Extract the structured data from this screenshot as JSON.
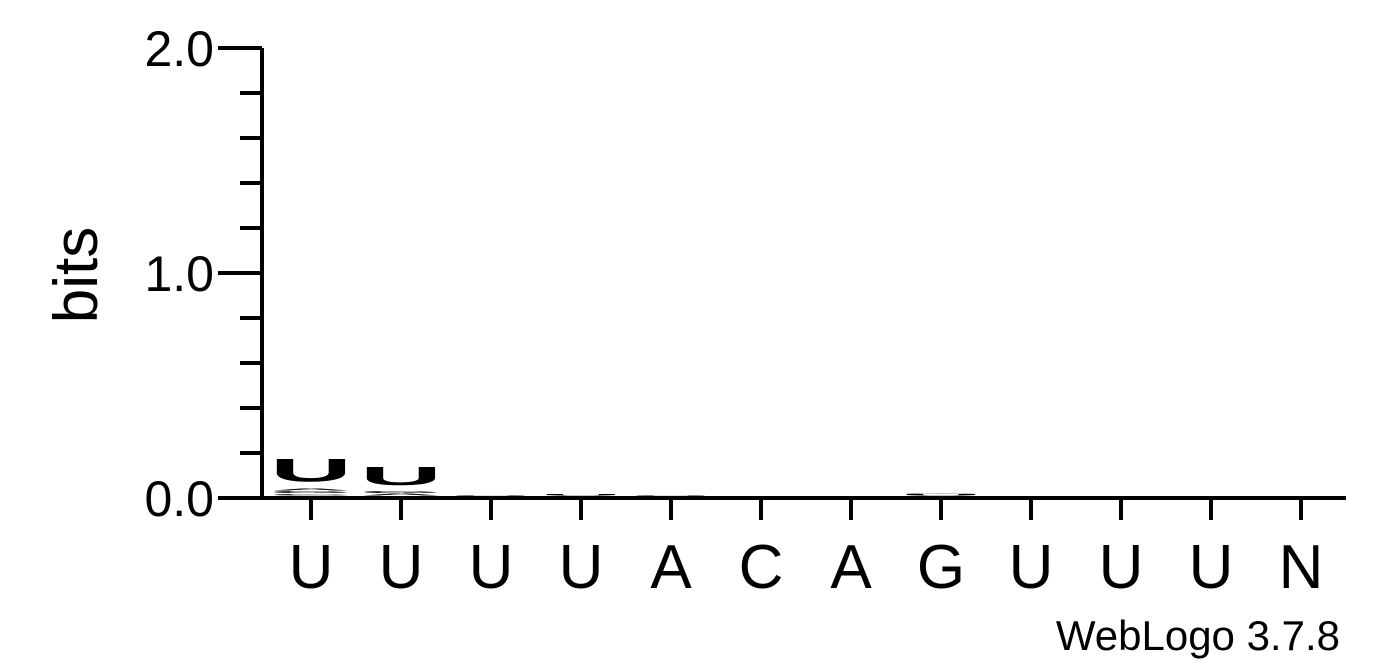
{
  "chart_data": {
    "type": "sequence-logo",
    "ylabel": "bits",
    "ylim": [
      0,
      2.0
    ],
    "y_ticks": [
      "0.0",
      "1.0",
      "2.0"
    ],
    "minor_tick_step": 0.2,
    "positions": [
      "U",
      "U",
      "U",
      "U",
      "A",
      "C",
      "A",
      "G",
      "U",
      "U",
      "U",
      "N"
    ],
    "stacks": [
      [
        {
          "letter": "C",
          "bits": 0.01
        },
        {
          "letter": "G",
          "bits": 0.012
        },
        {
          "letter": "A",
          "bits": 0.012
        },
        {
          "letter": "U",
          "bits": 0.16
        }
      ],
      [
        {
          "letter": "A",
          "bits": 0.012
        },
        {
          "letter": "G",
          "bits": 0.012
        },
        {
          "letter": "U",
          "bits": 0.13
        }
      ],
      [
        {
          "letter": "U",
          "bits": 0.006
        }
      ],
      [
        {
          "letter": "U",
          "bits": 0.01
        }
      ],
      [
        {
          "letter": "U",
          "bits": 0.006
        }
      ],
      [],
      [],
      [
        {
          "letter": "U",
          "bits": 0.008
        },
        {
          "letter": "G",
          "bits": 0.004
        }
      ],
      [],
      [],
      [],
      []
    ],
    "colors": {
      "A": "#cc0000",
      "C": "#0000cc",
      "G": "#ffb300",
      "U": "#f7901e",
      "axis": "#000000"
    },
    "footer": "WebLogo 3.7.8"
  }
}
